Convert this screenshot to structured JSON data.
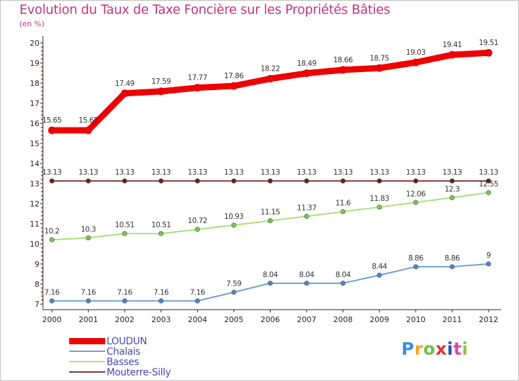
{
  "title": "Evolution du Taux de Taxe Foncière sur les Propriétés Bâties",
  "subtitle": "(en %)",
  "logo": {
    "text": "Proxiti",
    "letter_colors": [
      "#3a8de0",
      "#f5a623",
      "#6cc04a",
      "#e0352b",
      "#2a4fa8",
      "#d64ba3",
      "#8bc34a"
    ]
  },
  "chart_data": {
    "type": "line",
    "title": "Evolution du Taux de Taxe Foncière sur les Propriétés Bâties",
    "ylabel": "(en %)",
    "xlabel": "",
    "x": [
      "2000",
      "2001",
      "2002",
      "2003",
      "2004",
      "2005",
      "2006",
      "2007",
      "2008",
      "2009",
      "2010",
      "2011",
      "2012"
    ],
    "ylim": [
      7,
      20
    ],
    "yticks": [
      7,
      8,
      9,
      10,
      11,
      12,
      13,
      14,
      15,
      16,
      17,
      18,
      19,
      20
    ],
    "grid": false,
    "legend_position": "bottom-left",
    "series": [
      {
        "name": "LOUDUN",
        "color": "#ee0000",
        "values": [
          15.65,
          15.65,
          17.49,
          17.59,
          17.77,
          17.86,
          18.22,
          18.49,
          18.66,
          18.75,
          19.03,
          19.41,
          19.51
        ],
        "labels": [
          "15.65",
          "15.65",
          "17.49",
          "17.59",
          "17.77",
          "17.86",
          "18.22",
          "18.49",
          "18.66",
          "18.75",
          "19.03",
          "19.41",
          "19.51"
        ]
      },
      {
        "name": "Chalais",
        "color": "#6fa0d0",
        "point_color": "#4a88c8",
        "values": [
          7.16,
          7.16,
          7.16,
          7.16,
          7.16,
          7.59,
          8.04,
          8.04,
          8.04,
          8.44,
          8.86,
          8.86,
          9
        ],
        "labels": [
          "7.16",
          "7.16",
          "7.16",
          "7.16",
          "7.16",
          "7.59",
          "8.04",
          "8.04",
          "8.04",
          "8.44",
          "8.86",
          "8.86",
          "9"
        ]
      },
      {
        "name": "Basses",
        "color": "#a8e080",
        "point_color": "#7cc84a",
        "values": [
          10.2,
          10.3,
          10.51,
          10.51,
          10.72,
          10.93,
          11.15,
          11.37,
          11.6,
          11.83,
          12.06,
          12.3,
          12.55
        ],
        "labels": [
          "10.2",
          "10.3",
          "10.51",
          "10.51",
          "10.72",
          "10.93",
          "11.15",
          "11.37",
          "11.6",
          "11.83",
          "12.06",
          "12.3",
          "12.55"
        ]
      },
      {
        "name": "Mouterre-Silly",
        "color": "#7a3a3a",
        "point_color": "#6a1f1f",
        "values": [
          13.13,
          13.13,
          13.13,
          13.13,
          13.13,
          13.13,
          13.13,
          13.13,
          13.13,
          13.13,
          13.13,
          13.13,
          13.13
        ],
        "labels": [
          "13.13",
          "13.13",
          "13.13",
          "13.13",
          "13.13",
          "13.13",
          "13.13",
          "13.13",
          "13.13",
          "13.13",
          "13.13",
          "13.13",
          "13.13"
        ]
      }
    ]
  }
}
